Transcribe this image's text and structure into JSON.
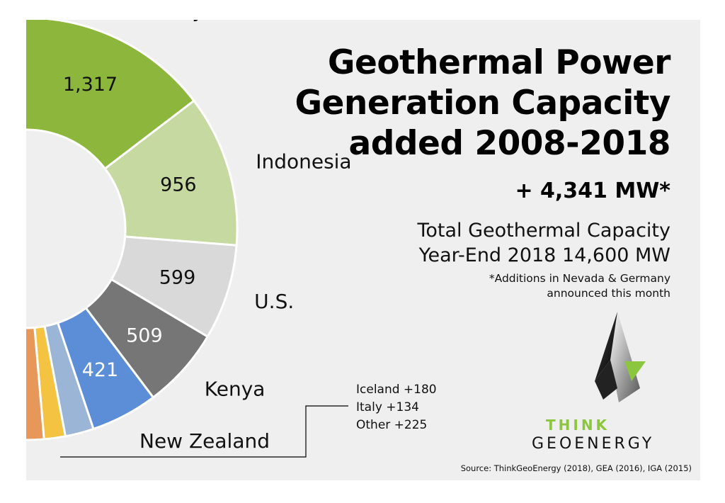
{
  "title_lines": [
    "Geothermal Power",
    "Generation Capacity",
    "added 2008-2018"
  ],
  "total_added": "+ 4,341 MW*",
  "total_capacity_lines": [
    "Total Geothermal Capacity",
    "Year-End 2018  14,600 MW"
  ],
  "footnote_lines": [
    "*Additions in Nevada & Germany",
    "announced this month"
  ],
  "other_countries_lines": [
    "Iceland +180",
    "Italy +134",
    "Other +225"
  ],
  "logo": {
    "line1": "THINK",
    "line2": "GEOENERGY"
  },
  "source": "Source: ThinkGeoEnergy (2018), GEA (2016), IGA (2015)",
  "chart_data": {
    "type": "pie",
    "donut": true,
    "unit": "MW",
    "series": [
      {
        "name": "Turkey",
        "value": 1317,
        "label": "1,317",
        "color": "#8db63c"
      },
      {
        "name": "Indonesia",
        "value": 956,
        "label": "956",
        "color": "#c6d9a0"
      },
      {
        "name": "U.S.",
        "value": 599,
        "label": "599",
        "color": "#d9d9d9"
      },
      {
        "name": "Kenya",
        "value": 509,
        "label": "509",
        "color": "#767676"
      },
      {
        "name": "New Zealand",
        "value": 421,
        "label": "421",
        "color": "#5b8ed6"
      },
      {
        "name": "Iceland",
        "value": 180,
        "label": "",
        "color": "#9bb5d6"
      },
      {
        "name": "Italy",
        "value": 134,
        "label": "",
        "color": "#f5c342"
      },
      {
        "name": "Other",
        "value": 225,
        "label": "",
        "color": "#e8975a"
      }
    ]
  }
}
